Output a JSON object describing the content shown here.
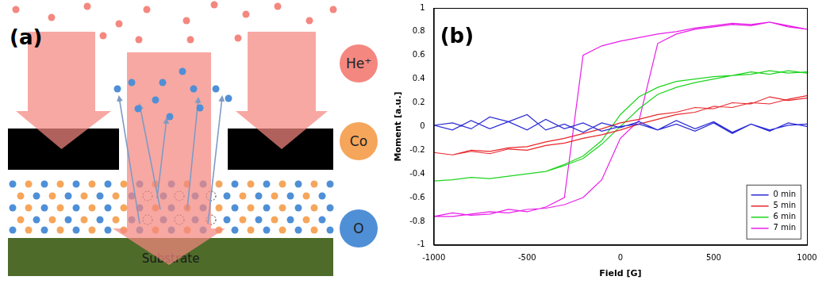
{
  "diagram": {
    "panel_label": "(a)",
    "species": [
      {
        "label": "He⁺",
        "color": "#f4877f"
      },
      {
        "label": "Co",
        "color": "#f5a65b"
      },
      {
        "label": "O",
        "color": "#4f8fd6"
      }
    ],
    "substrate": "Substrate"
  },
  "chart_data": {
    "type": "line",
    "panel_label": "(b)",
    "x_label": "Field [G]",
    "y_label": "Moment [a.u.]",
    "x": [
      1000,
      900,
      800,
      700,
      600,
      500,
      400,
      300,
      200,
      100,
      0,
      -100,
      -200,
      -300,
      -400,
      -500,
      -600,
      -700,
      -800,
      -900,
      -1000,
      -900,
      -800,
      -700,
      -600,
      -500,
      -400,
      -300,
      -200,
      -100,
      0,
      100,
      200,
      300,
      400,
      500,
      600,
      700,
      800,
      900,
      1000
    ],
    "series": [
      {
        "name": "0 min",
        "color": "#2b2bd6",
        "values": [
          0.0,
          0.03,
          -0.04,
          0.02,
          -0.05,
          0.04,
          -0.02,
          0.05,
          -0.03,
          0.02,
          0.0,
          -0.04,
          0.03,
          -0.02,
          0.06,
          -0.03,
          0.04,
          0.08,
          -0.02,
          0.03,
          0.01,
          -0.03,
          0.05,
          -0.02,
          0.04,
          0.1,
          -0.03,
          0.02,
          -0.05,
          0.03,
          -0.01,
          0.04,
          -0.03,
          0.02,
          -0.04,
          0.03,
          -0.06,
          0.02,
          -0.03,
          0.01,
          0.02
        ]
      },
      {
        "name": "5 min",
        "color": "#e8262b",
        "values": [
          0.24,
          0.22,
          0.25,
          0.19,
          0.2,
          0.15,
          0.16,
          0.12,
          0.1,
          0.06,
          0.03,
          -0.02,
          -0.06,
          -0.1,
          -0.13,
          -0.17,
          -0.18,
          -0.21,
          -0.2,
          -0.24,
          -0.22,
          -0.24,
          -0.21,
          -0.23,
          -0.19,
          -0.2,
          -0.16,
          -0.14,
          -0.1,
          -0.07,
          -0.03,
          0.02,
          0.06,
          0.1,
          0.12,
          0.17,
          0.16,
          0.2,
          0.19,
          0.23,
          0.26
        ]
      },
      {
        "name": "6 min",
        "color": "#1ed41e",
        "values": [
          0.45,
          0.47,
          0.44,
          0.46,
          0.43,
          0.42,
          0.4,
          0.38,
          0.33,
          0.25,
          0.1,
          -0.12,
          -0.25,
          -0.32,
          -0.38,
          -0.4,
          -0.42,
          -0.44,
          -0.43,
          -0.45,
          -0.46,
          -0.45,
          -0.43,
          -0.44,
          -0.42,
          -0.4,
          -0.38,
          -0.33,
          -0.27,
          -0.15,
          0.0,
          0.15,
          0.27,
          0.33,
          0.37,
          0.4,
          0.43,
          0.44,
          0.47,
          0.45,
          0.46
        ]
      },
      {
        "name": "7 min",
        "color": "#e81ee8",
        "values": [
          0.82,
          0.85,
          0.88,
          0.86,
          0.87,
          0.85,
          0.83,
          0.8,
          0.78,
          0.75,
          0.72,
          0.68,
          0.6,
          -0.6,
          -0.68,
          -0.72,
          -0.7,
          -0.74,
          -0.75,
          -0.73,
          -0.76,
          -0.76,
          -0.74,
          -0.72,
          -0.73,
          -0.7,
          -0.69,
          -0.66,
          -0.6,
          -0.45,
          -0.1,
          0.05,
          0.7,
          0.78,
          0.82,
          0.84,
          0.86,
          0.85,
          0.88,
          0.84,
          0.82
        ]
      }
    ],
    "xlim": [
      -1000,
      1000
    ],
    "xticks": [
      -1000,
      -500,
      0,
      500,
      1000
    ],
    "ylim": [
      -1,
      1
    ],
    "yticks": [
      -1,
      -0.8,
      -0.6,
      -0.4,
      -0.2,
      0,
      0.2,
      0.4,
      0.6,
      0.8,
      1
    ],
    "grid": false,
    "legend": "lower right"
  }
}
